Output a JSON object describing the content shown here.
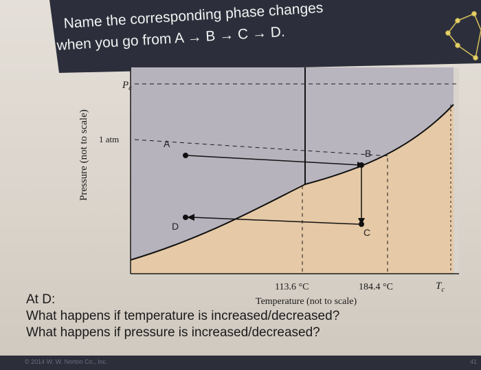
{
  "slide": {
    "title_line1": "Name the corresponding phase changes",
    "title_line2": "when you go from A → B → C → D."
  },
  "diagram": {
    "pc_label": "P",
    "pc_subscript": "c",
    "atm_label": "1 atm",
    "y_axis_label": "Pressure (not to scale)",
    "x_axis_label": "Temperature (not to scale)",
    "tick_1": "113.6 °C",
    "tick_2": "184.4 °C",
    "tc_label": "T",
    "tc_subscript": "c",
    "points": {
      "a": "A",
      "b": "B",
      "c": "C",
      "d": "D"
    },
    "colors": {
      "solid_region": "#b7b3bd",
      "liquid_region": "#e8cda9",
      "gas_region": "#e6c9a6",
      "banner": "#2c2f3b"
    }
  },
  "questions": {
    "heading": "At D:",
    "q1": "What happens if temperature is increased/decreased?",
    "q2": "What happens if pressure is increased/decreased?"
  },
  "footer": {
    "copyright": "© 2014 W. W. Norton Co., Inc.",
    "page": "41"
  }
}
